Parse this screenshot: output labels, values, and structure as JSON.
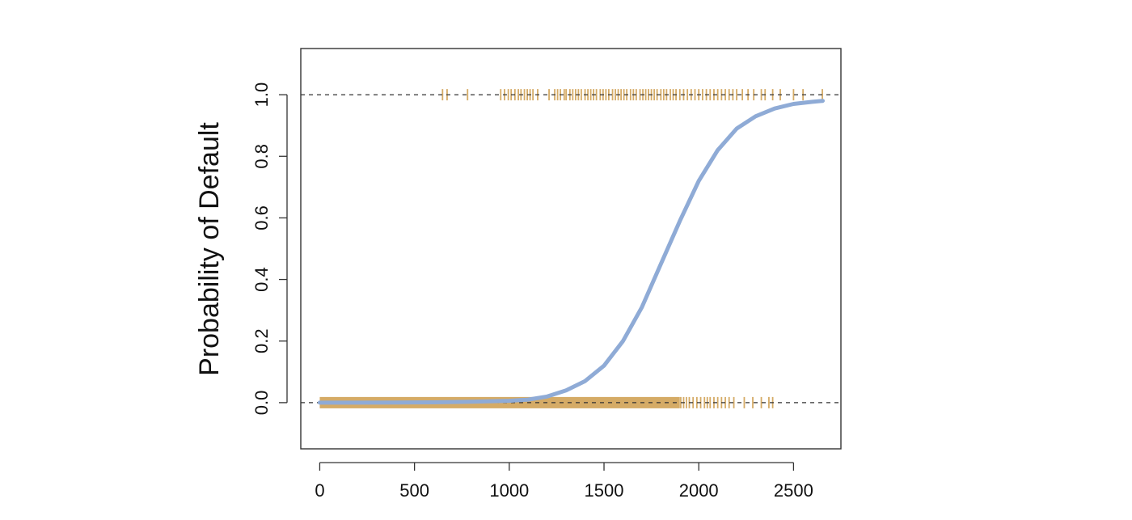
{
  "chart_data": {
    "type": "line",
    "title": "",
    "xlabel": "",
    "ylabel": "Probability of Default",
    "xlim": [
      -100,
      2750
    ],
    "ylim": [
      -0.15,
      1.15
    ],
    "x_ticks": [
      "0",
      "500",
      "1000",
      "1500",
      "2000",
      "2500"
    ],
    "y_ticks": [
      "0.0",
      "0.2",
      "0.4",
      "0.6",
      "0.8",
      "1.0"
    ],
    "reference_lines": [
      0,
      1
    ],
    "grid": false,
    "curve": {
      "x": [
        0,
        200,
        400,
        600,
        800,
        1000,
        1100,
        1200,
        1300,
        1400,
        1500,
        1600,
        1700,
        1800,
        1900,
        2000,
        2100,
        2200,
        2300,
        2400,
        2500,
        2600,
        2654
      ],
      "y": [
        0.0,
        0.0,
        0.0005,
        0.001,
        0.003,
        0.006,
        0.01,
        0.02,
        0.04,
        0.07,
        0.12,
        0.2,
        0.31,
        0.45,
        0.59,
        0.72,
        0.82,
        0.89,
        0.93,
        0.955,
        0.97,
        0.977,
        0.98
      ]
    },
    "rug_default_yes_x": [
      648,
      672,
      780,
      955,
      975,
      995,
      1010,
      1030,
      1048,
      1062,
      1080,
      1095,
      1110,
      1125,
      1150,
      1210,
      1240,
      1255,
      1270,
      1290,
      1300,
      1320,
      1335,
      1350,
      1365,
      1380,
      1400,
      1415,
      1430,
      1445,
      1460,
      1480,
      1495,
      1510,
      1525,
      1545,
      1560,
      1575,
      1590,
      1605,
      1620,
      1640,
      1655,
      1670,
      1690,
      1705,
      1720,
      1735,
      1750,
      1765,
      1780,
      1800,
      1815,
      1830,
      1850,
      1865,
      1880,
      1900,
      1920,
      1940,
      1960,
      1980,
      2000,
      2020,
      2040,
      2060,
      2080,
      2100,
      2120,
      2140,
      2160,
      2180,
      2200,
      2230,
      2260,
      2290,
      2330,
      2350,
      2390,
      2430,
      2500,
      2550,
      2652
    ],
    "rug_default_no_band": [
      0,
      1900
    ],
    "rug_default_no_x": [
      1905,
      1920,
      1935,
      1950,
      1970,
      1990,
      2010,
      2030,
      2045,
      2060,
      2080,
      2100,
      2120,
      2140,
      2160,
      2185,
      2240,
      2285,
      2330,
      2370,
      2390
    ],
    "colors": {
      "curve": "#8fabd6",
      "rug": "#d5ab66",
      "axis": "#333333",
      "reference_line": "#333333"
    }
  }
}
